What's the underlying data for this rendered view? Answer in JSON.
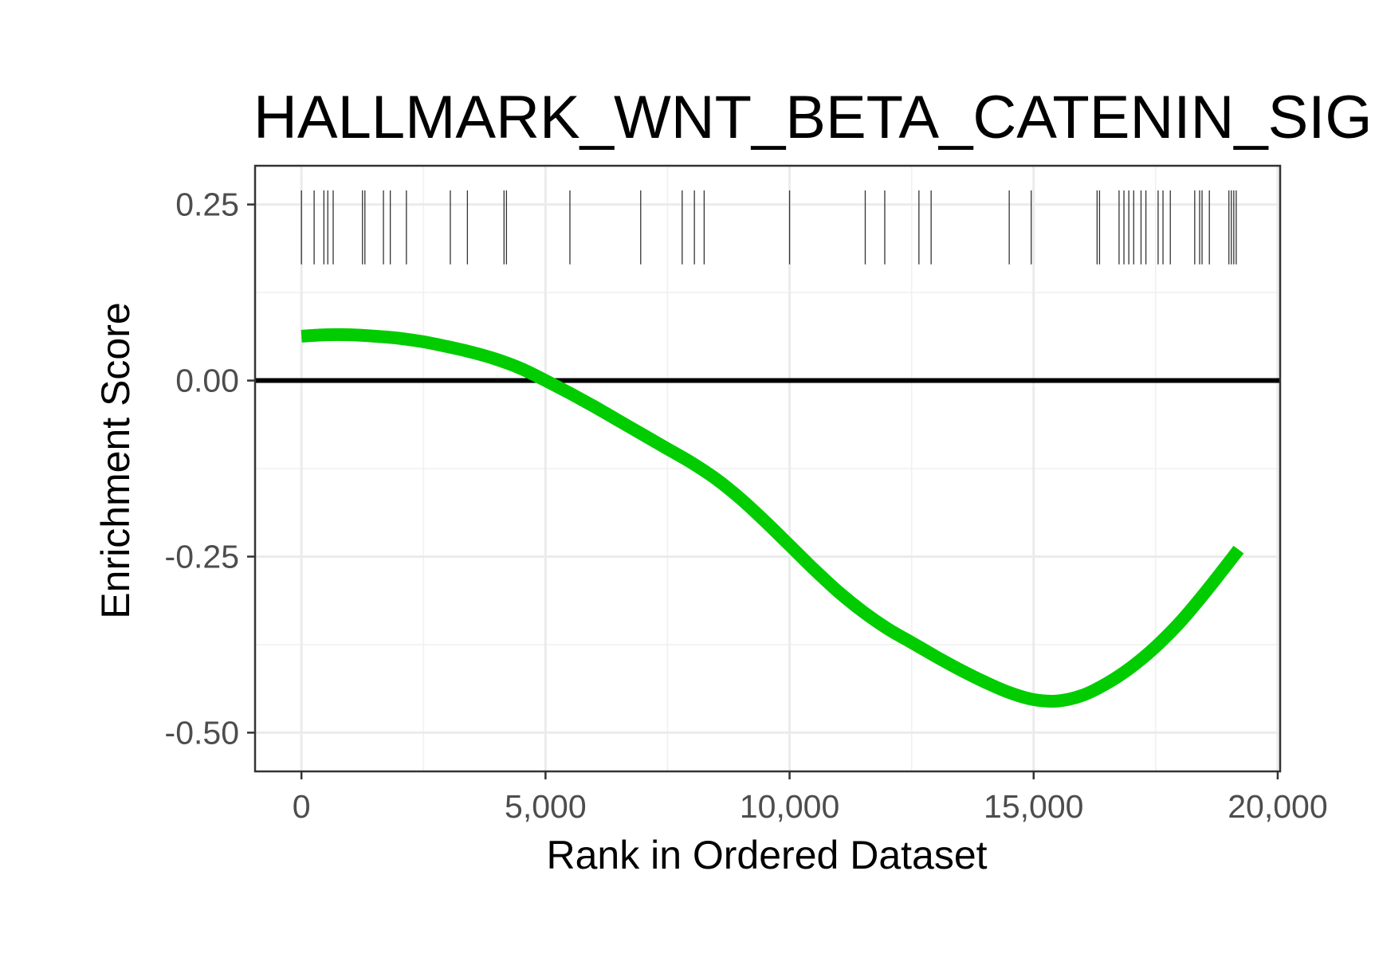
{
  "chart_data": {
    "type": "line",
    "title": "HALLMARK_WNT_BETA_CATENIN_SIGNALING",
    "xlabel": "Rank in Ordered Dataset",
    "ylabel": "Enrichment Score",
    "xlim": [
      -950,
      20050
    ],
    "ylim": [
      -0.555,
      0.305
    ],
    "x_ticks": [
      0,
      5000,
      10000,
      15000,
      20000
    ],
    "x_tick_labels": [
      "0",
      "5,000",
      "10,000",
      "15,000",
      "20,000"
    ],
    "y_ticks": [
      0.25,
      0.0,
      -0.25,
      -0.5
    ],
    "y_tick_labels": [
      "0.25",
      "0.00",
      "-0.25",
      "-0.50"
    ],
    "grid": true,
    "reference_line_y": 0,
    "series": [
      {
        "color": "#00cc00",
        "x": [
          0,
          500,
          1000,
          1500,
          2000,
          2500,
          3000,
          3500,
          4000,
          4500,
          5000,
          5500,
          6000,
          6500,
          7000,
          7500,
          8000,
          8500,
          9000,
          9500,
          10000,
          10500,
          11000,
          11500,
          12000,
          12500,
          13000,
          13500,
          14000,
          14500,
          15000,
          15500,
          16000,
          16500,
          17000,
          17500,
          18000,
          18500,
          19000,
          19200
        ],
        "y": [
          0.063,
          0.065,
          0.065,
          0.063,
          0.06,
          0.055,
          0.048,
          0.04,
          0.03,
          0.017,
          0.0,
          -0.018,
          -0.037,
          -0.057,
          -0.077,
          -0.097,
          -0.117,
          -0.14,
          -0.168,
          -0.2,
          -0.234,
          -0.268,
          -0.3,
          -0.328,
          -0.352,
          -0.372,
          -0.392,
          -0.411,
          -0.428,
          -0.443,
          -0.453,
          -0.455,
          -0.447,
          -0.43,
          -0.407,
          -0.378,
          -0.343,
          -0.302,
          -0.258,
          -0.24
        ]
      }
    ],
    "gene_hits": [
      0,
      260,
      460,
      540,
      650,
      1250,
      1300,
      1680,
      1820,
      2150,
      3050,
      3400,
      4150,
      4200,
      5500,
      6950,
      7800,
      8050,
      8250,
      10000,
      11550,
      11950,
      12650,
      12900,
      14500,
      14950,
      16300,
      16350,
      16750,
      16850,
      16950,
      17050,
      17200,
      17300,
      17550,
      17650,
      17800,
      18300,
      18400,
      18450,
      18600,
      19000,
      19050,
      19100,
      19150
    ],
    "hit_band": [
      0.165,
      0.27
    ]
  }
}
